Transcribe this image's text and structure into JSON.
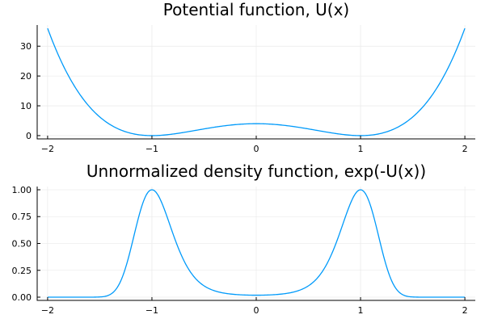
{
  "chart_data": [
    {
      "type": "line",
      "title": "Potential function, U(x)",
      "function": "U(x) = 4(x^2 - 1)^2",
      "xlim": [
        -2.1,
        2.1
      ],
      "ylim": [
        -1.1,
        37.1
      ],
      "xticks": [
        -2,
        -1,
        0,
        1,
        2
      ],
      "xtick_labels": [
        "−2",
        "−1",
        "0",
        "1",
        "2"
      ],
      "yticks": [
        0,
        10,
        20,
        30
      ],
      "ytick_labels": [
        "0",
        "10",
        "20",
        "30"
      ],
      "grid": true,
      "legend": "none",
      "color": "#009AFA",
      "series": [
        {
          "x": [
            -2,
            -1.75,
            -1.5,
            -1.25,
            -1,
            -0.75,
            -0.5,
            -0.25,
            0,
            0.25,
            0.5,
            0.75,
            1,
            1.25,
            1.5,
            1.75,
            2
          ],
          "values": [
            36,
            17.02,
            6.25,
            1.27,
            0,
            0.77,
            2.25,
            3.52,
            4,
            3.52,
            2.25,
            0.77,
            0,
            1.27,
            6.25,
            17.02,
            36
          ]
        }
      ]
    },
    {
      "type": "line",
      "title": "Unnormalized density function, exp(-U(x))",
      "function": "exp(-U(x))",
      "xlim": [
        -2.1,
        2.1
      ],
      "ylim": [
        -0.03,
        1.03
      ],
      "xticks": [
        -2,
        -1,
        0,
        1,
        2
      ],
      "xtick_labels": [
        "−2",
        "−1",
        "0",
        "1",
        "2"
      ],
      "yticks": [
        0,
        0.25,
        0.5,
        0.75,
        1.0
      ],
      "ytick_labels": [
        "0.00",
        "0.25",
        "0.50",
        "0.75",
        "1.00"
      ],
      "grid": true,
      "legend": "none",
      "color": "#009AFA",
      "series": [
        {
          "x": [
            -2,
            -1.5,
            -1.25,
            -1,
            -0.75,
            -0.5,
            0,
            0.5,
            0.75,
            1,
            1.25,
            1.5,
            2
          ],
          "values": [
            0,
            0.002,
            0.281,
            1,
            0.463,
            0.105,
            0.018,
            0.105,
            0.463,
            1,
            0.281,
            0.002,
            0
          ]
        }
      ]
    }
  ]
}
